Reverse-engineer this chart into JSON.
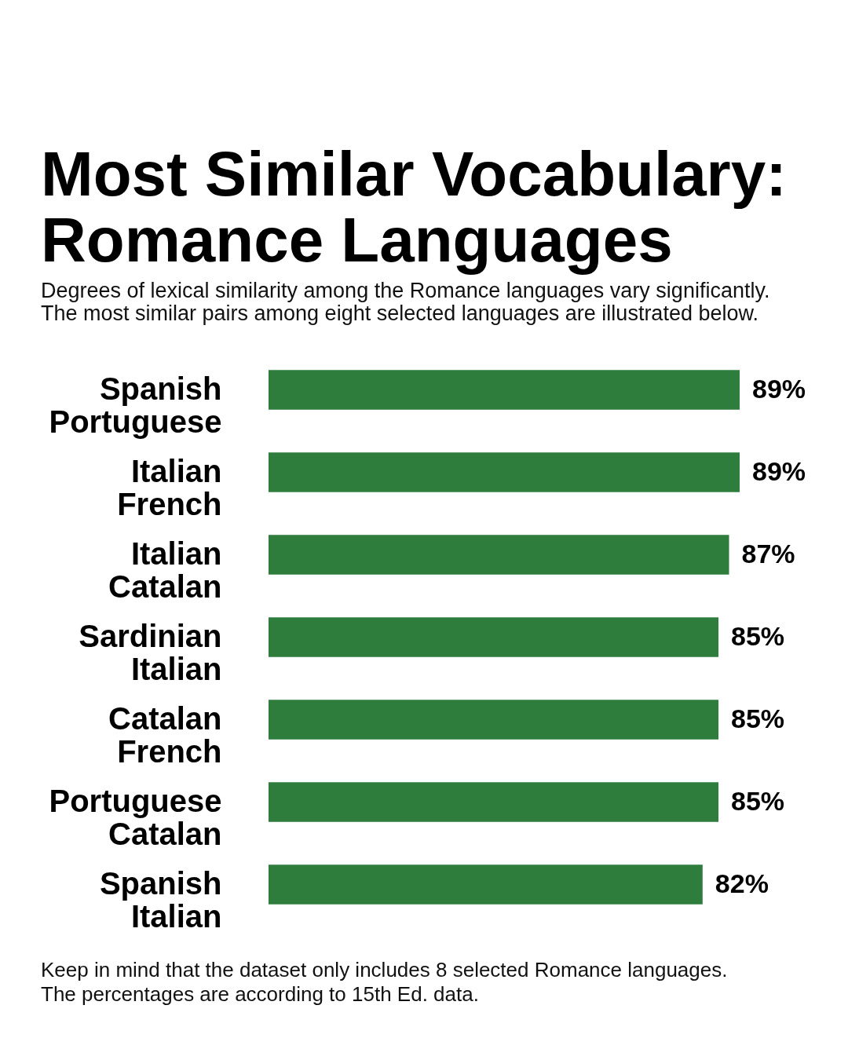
{
  "chart_data": {
    "type": "bar",
    "orientation": "horizontal",
    "title": "Most Similar Vocabulary: Romance Languages",
    "subtitle": "Degrees of lexical similarity among the Romance languages vary significantly. The most similar pairs among eight selected languages are illustrated below.",
    "categories": [
      "Spanish\nPortuguese",
      "Italian\nFrench",
      "Italian\nCatalan",
      "Sardinian\nItalian",
      "Catalan\nFrench",
      "Portuguese\nCatalan",
      "Spanish\nItalian"
    ],
    "values": [
      89,
      89,
      87,
      85,
      85,
      85,
      82
    ],
    "value_labels": [
      "89%",
      "89%",
      "87%",
      "85%",
      "85%",
      "85%",
      "82%"
    ],
    "color": "#2e7d3c",
    "tick_labels": "y",
    "annotations": [
      "Keep in mind that the dataset only includes 8 selected Romance languages.",
      "The percentages are according to 15th Ed. data."
    ]
  }
}
